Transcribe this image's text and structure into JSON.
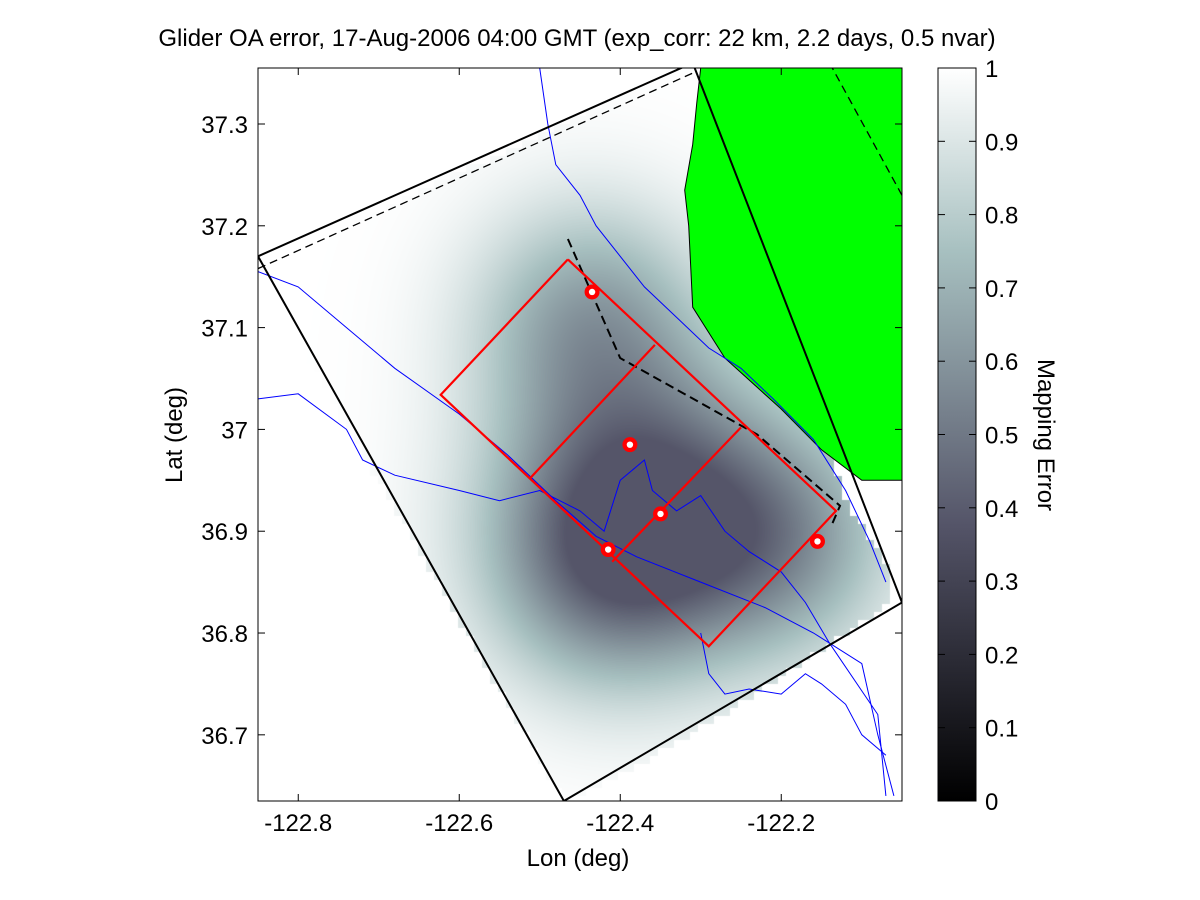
{
  "chart_data": {
    "type": "heatmap",
    "title": "Glider OA error, 17-Aug-2006 04:00 GMT (exp_corr: 22 km, 2.2 days, 0.5 nvar)",
    "xlabel": "Lon (deg)",
    "ylabel": "Lat (deg)",
    "xlim": [
      -122.85,
      -122.05
    ],
    "ylim": [
      36.635,
      37.355
    ],
    "xticks": [
      -122.8,
      -122.6,
      -122.4,
      -122.2
    ],
    "xtick_labels": [
      "-122.8",
      "-122.6",
      "-122.4",
      "-122.2"
    ],
    "yticks": [
      36.7,
      36.8,
      36.9,
      37.0,
      37.1,
      37.2,
      37.3
    ],
    "ytick_labels": [
      "36.7",
      "36.8",
      "36.9",
      "37",
      "37.1",
      "37.2",
      "37.3"
    ],
    "colorbar": {
      "label": "Mapping Error",
      "range": [
        0,
        1
      ],
      "ticks": [
        0,
        0.1,
        0.2,
        0.3,
        0.4,
        0.5,
        0.6,
        0.7,
        0.8,
        0.9,
        1
      ],
      "tick_labels": [
        "0",
        "0.1",
        "0.2",
        "0.3",
        "0.4",
        "0.5",
        "0.6",
        "0.7",
        "0.8",
        "0.9",
        "1"
      ],
      "colormap": "bone-gray"
    },
    "glider_positions": [
      {
        "lon": -122.435,
        "lat": 37.135
      },
      {
        "lon": -122.388,
        "lat": 36.985
      },
      {
        "lon": -122.35,
        "lat": 36.917
      },
      {
        "lon": -122.415,
        "lat": 36.882
      },
      {
        "lon": -122.155,
        "lat": 36.89
      }
    ],
    "error_minima": [
      {
        "lon": -122.37,
        "lat": 36.93,
        "depth": 0.52,
        "radius": 0.1
      },
      {
        "lon": -122.44,
        "lat": 37.11,
        "depth": 0.33,
        "radius": 0.08
      },
      {
        "lon": -122.2,
        "lat": 36.89,
        "depth": 0.32,
        "radius": 0.08
      },
      {
        "lon": -122.42,
        "lat": 36.86,
        "depth": 0.3,
        "radius": 0.08
      }
    ],
    "domain_outline": [
      [
        -122.85,
        37.17
      ],
      [
        -122.31,
        37.36
      ],
      [
        -122.05,
        36.83
      ],
      [
        -122.47,
        36.635
      ],
      [
        -122.85,
        37.17
      ]
    ],
    "data_region": [
      [
        -122.85,
        37.155
      ],
      [
        -122.32,
        37.36
      ],
      [
        -122.3,
        37.36
      ],
      [
        -122.12,
        36.93
      ],
      [
        -122.07,
        36.87
      ],
      [
        -122.06,
        36.83
      ],
      [
        -122.27,
        36.72
      ],
      [
        -122.4,
        36.66
      ],
      [
        -122.47,
        36.635
      ],
      [
        -122.85,
        37.155
      ]
    ],
    "red_grid": {
      "outer": [
        [
          -122.465,
          37.167
        ],
        [
          -122.623,
          37.034
        ],
        [
          -122.29,
          36.787
        ],
        [
          -122.132,
          36.92
        ],
        [
          -122.465,
          37.167
        ]
      ],
      "dividers": [
        [
          [
            -122.357,
            37.083
          ],
          [
            -122.512,
            36.952
          ]
        ],
        [
          [
            -122.25,
            37.002
          ],
          [
            -122.41,
            36.87
          ]
        ]
      ]
    },
    "dashed_track": [
      [
        -122.465,
        37.187
      ],
      [
        -122.4,
        37.07
      ],
      [
        -122.23,
        36.995
      ],
      [
        -122.127,
        36.925
      ],
      [
        -122.138,
        36.905
      ]
    ],
    "offshore_dashed": [
      [
        -122.85,
        37.158
      ],
      [
        -122.31,
        37.35
      ]
    ],
    "land_dashed": [
      [
        -122.14,
        37.36
      ],
      [
        -122.05,
        37.23
      ]
    ],
    "land_polygon": [
      [
        -122.3,
        37.355
      ],
      [
        -122.05,
        37.355
      ],
      [
        -122.05,
        36.95
      ],
      [
        -122.1,
        36.95
      ],
      [
        -122.15,
        36.98
      ],
      [
        -122.2,
        37.02
      ],
      [
        -122.27,
        37.07
      ],
      [
        -122.31,
        37.12
      ],
      [
        -122.315,
        37.2
      ],
      [
        -122.32,
        37.235
      ],
      [
        -122.31,
        37.28
      ],
      [
        -122.305,
        37.32
      ],
      [
        -122.3,
        37.355
      ]
    ],
    "bathymetry_contours": [
      [
        [
          -122.85,
          37.155
        ],
        [
          -122.8,
          37.14
        ],
        [
          -122.74,
          37.1
        ],
        [
          -122.68,
          37.06
        ],
        [
          -122.6,
          37.015
        ],
        [
          -122.54,
          36.975
        ],
        [
          -122.48,
          36.93
        ],
        [
          -122.43,
          36.895
        ],
        [
          -122.38,
          36.875
        ],
        [
          -122.3,
          36.85
        ],
        [
          -122.22,
          36.825
        ],
        [
          -122.16,
          36.8
        ],
        [
          -122.1,
          36.77
        ],
        [
          -122.08,
          36.7
        ],
        [
          -122.06,
          36.64
        ]
      ],
      [
        [
          -122.85,
          37.03
        ],
        [
          -122.8,
          37.035
        ],
        [
          -122.74,
          37.0
        ],
        [
          -122.72,
          36.97
        ],
        [
          -122.68,
          36.955
        ],
        [
          -122.6,
          36.94
        ],
        [
          -122.55,
          36.93
        ],
        [
          -122.5,
          36.94
        ],
        [
          -122.45,
          36.92
        ],
        [
          -122.42,
          36.9
        ],
        [
          -122.4,
          36.95
        ],
        [
          -122.37,
          36.97
        ],
        [
          -122.36,
          36.94
        ],
        [
          -122.33,
          36.92
        ],
        [
          -122.3,
          36.935
        ],
        [
          -122.27,
          36.9
        ],
        [
          -122.24,
          36.88
        ],
        [
          -122.2,
          36.86
        ],
        [
          -122.17,
          36.83
        ],
        [
          -122.14,
          36.79
        ],
        [
          -122.08,
          36.72
        ],
        [
          -122.07,
          36.64
        ]
      ],
      [
        [
          -122.5,
          37.355
        ],
        [
          -122.49,
          37.3
        ],
        [
          -122.48,
          37.26
        ],
        [
          -122.45,
          37.23
        ],
        [
          -122.43,
          37.2
        ],
        [
          -122.4,
          37.17
        ],
        [
          -122.37,
          37.14
        ],
        [
          -122.33,
          37.11
        ],
        [
          -122.29,
          37.08
        ],
        [
          -122.25,
          37.06
        ],
        [
          -122.21,
          37.03
        ],
        [
          -122.16,
          36.99
        ],
        [
          -122.12,
          36.94
        ],
        [
          -122.09,
          36.89
        ],
        [
          -122.07,
          36.85
        ]
      ],
      [
        [
          -122.3,
          36.8
        ],
        [
          -122.29,
          36.76
        ],
        [
          -122.27,
          36.74
        ],
        [
          -122.24,
          36.745
        ],
        [
          -122.2,
          36.74
        ],
        [
          -122.17,
          36.76
        ],
        [
          -122.15,
          36.75
        ],
        [
          -122.12,
          36.73
        ],
        [
          -122.1,
          36.7
        ],
        [
          -122.07,
          36.68
        ]
      ]
    ]
  }
}
